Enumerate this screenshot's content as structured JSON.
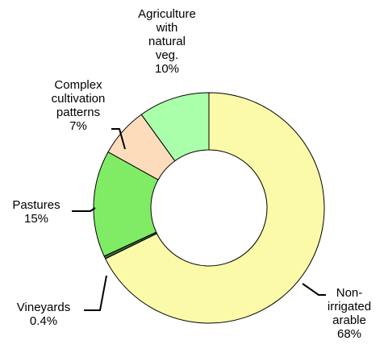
{
  "chart_data": {
    "type": "donut",
    "categories": [
      "Non-irrigated arable",
      "Vineyards",
      "Pastures",
      "Complex cultivation patterns",
      "Agriculture with natural veg."
    ],
    "values": [
      68,
      0.4,
      15,
      7,
      10
    ],
    "value_labels": [
      "68%",
      "0.4%",
      "15%",
      "7%",
      "10%"
    ],
    "colors": [
      "#fafaa8",
      "#3a6b3a",
      "#80ec66",
      "#fddcbc",
      "#aaffaa"
    ]
  }
}
